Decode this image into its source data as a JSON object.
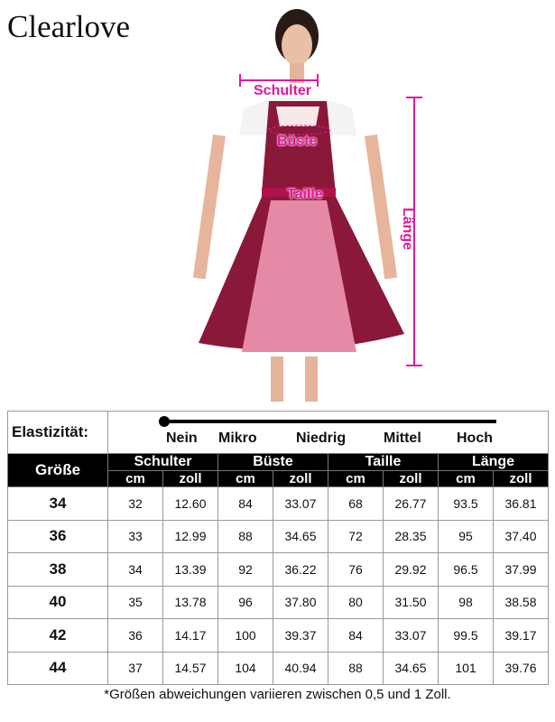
{
  "brand": "Clearlove",
  "measure_labels": {
    "shoulder": "Schulter",
    "bust": "Büste",
    "waist": "Taille",
    "length": "Länge"
  },
  "colors": {
    "accent": "#e2179b",
    "dress": "#8a1838",
    "apron": "#e58aa6"
  },
  "elasticity": {
    "label": "Elastizität:",
    "levels": [
      "Nein",
      "Mikro",
      "Niedrig",
      "Mittel",
      "Hoch"
    ],
    "selected": "Nein"
  },
  "table": {
    "size_header": "Größe",
    "groups": [
      "Schulter",
      "Büste",
      "Taille",
      "Länge"
    ],
    "units": [
      "cm",
      "zoll",
      "cm",
      "zoll",
      "cm",
      "zoll",
      "cm",
      "zoll"
    ],
    "rows": [
      [
        "34",
        "32",
        "12.60",
        "84",
        "33.07",
        "68",
        "26.77",
        "93.5",
        "36.81"
      ],
      [
        "36",
        "33",
        "12.99",
        "88",
        "34.65",
        "72",
        "28.35",
        "95",
        "37.40"
      ],
      [
        "38",
        "34",
        "13.39",
        "92",
        "36.22",
        "76",
        "29.92",
        "96.5",
        "37.99"
      ],
      [
        "40",
        "35",
        "13.78",
        "96",
        "37.80",
        "80",
        "31.50",
        "98",
        "38.58"
      ],
      [
        "42",
        "36",
        "14.17",
        "100",
        "39.37",
        "84",
        "33.07",
        "99.5",
        "39.17"
      ],
      [
        "44",
        "37",
        "14.57",
        "104",
        "40.94",
        "88",
        "34.65",
        "101",
        "39.76"
      ]
    ]
  },
  "note": "*Größen abweichungen variieren zwischen 0,5 und 1 Zoll."
}
